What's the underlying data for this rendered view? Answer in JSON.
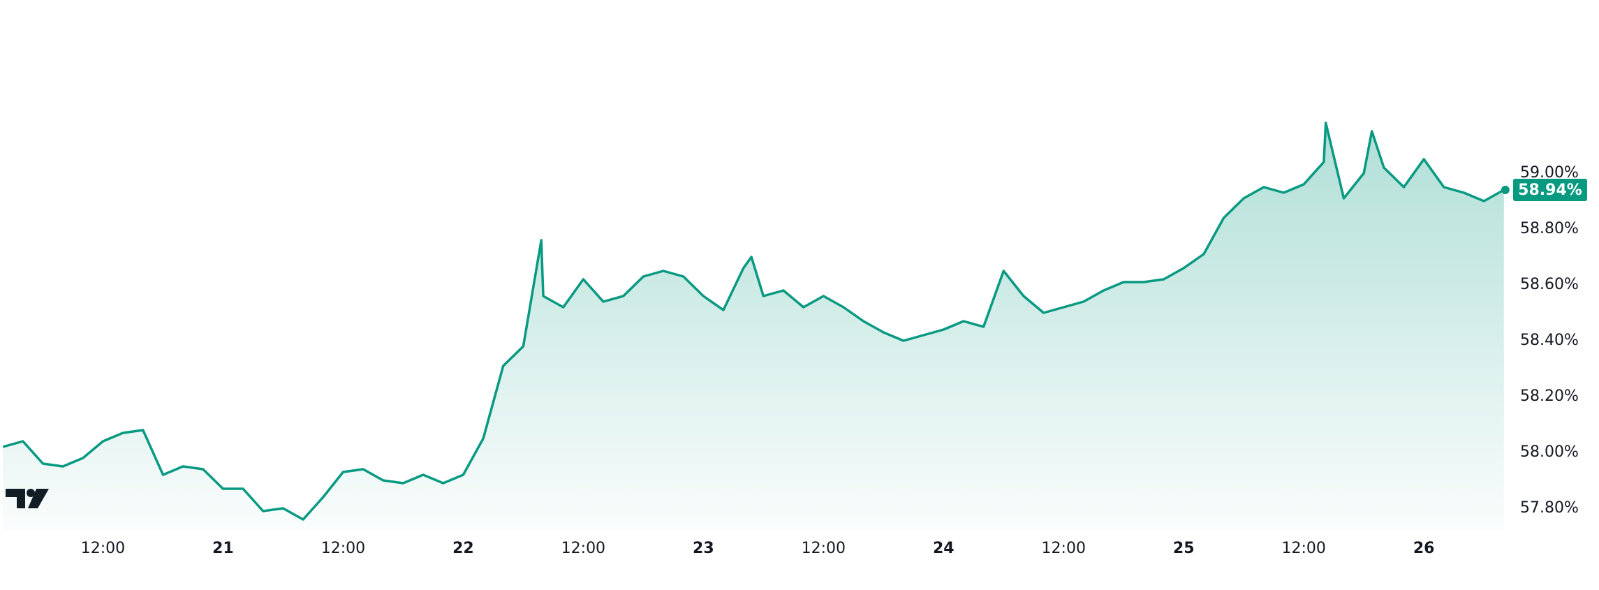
{
  "chart_data": {
    "type": "line",
    "x": [
      2,
      4,
      6,
      8,
      10,
      12,
      14,
      16,
      18,
      20,
      22,
      24,
      26,
      28,
      30,
      32,
      34,
      36,
      38,
      40,
      42,
      44,
      46,
      48,
      50,
      52,
      54,
      55.8,
      56,
      58,
      60,
      62,
      64,
      66,
      68,
      70,
      72,
      74,
      76,
      76.8,
      78,
      80,
      82,
      84,
      86,
      88,
      90,
      92,
      94,
      96,
      98,
      100,
      102,
      104,
      106,
      108,
      110,
      112,
      114,
      116,
      118,
      120,
      122,
      124,
      126,
      128,
      130,
      132,
      134,
      134.2,
      136,
      138,
      138.8,
      140,
      142,
      144,
      146,
      148,
      150,
      152
    ],
    "values": [
      58.02,
      58.04,
      57.96,
      57.95,
      57.98,
      58.04,
      58.07,
      58.08,
      57.92,
      57.95,
      57.94,
      57.87,
      57.87,
      57.79,
      57.8,
      57.76,
      57.84,
      57.93,
      57.94,
      57.9,
      57.89,
      57.92,
      57.89,
      57.92,
      58.05,
      58.31,
      58.38,
      58.76,
      58.56,
      58.52,
      58.62,
      58.54,
      58.56,
      58.63,
      58.65,
      58.63,
      58.56,
      58.51,
      58.66,
      58.7,
      58.56,
      58.58,
      58.52,
      58.56,
      58.52,
      58.47,
      58.43,
      58.4,
      58.42,
      58.44,
      58.47,
      58.45,
      58.65,
      58.56,
      58.5,
      58.52,
      58.54,
      58.58,
      58.61,
      58.61,
      58.62,
      58.66,
      58.71,
      58.84,
      58.91,
      58.95,
      58.93,
      58.96,
      59.04,
      59.18,
      58.91,
      59.0,
      59.15,
      59.02,
      58.95,
      59.05,
      58.95,
      58.93,
      58.9,
      58.94
    ],
    "color": "#089981",
    "current": {
      "value": 58.94,
      "label": "58.94%"
    },
    "xlim": [
      1.71,
      152.5
    ],
    "xticks": [
      {
        "value": 12,
        "label": "12:00"
      },
      {
        "value": 24,
        "label": "21"
      },
      {
        "value": 36,
        "label": "12:00"
      },
      {
        "value": 48,
        "label": "22"
      },
      {
        "value": 60,
        "label": "12:00"
      },
      {
        "value": 72,
        "label": "23"
      },
      {
        "value": 84,
        "label": "12:00"
      },
      {
        "value": 96,
        "label": "24"
      },
      {
        "value": 108,
        "label": "12:00"
      },
      {
        "value": 120,
        "label": "25"
      },
      {
        "value": 132,
        "label": "12:00"
      },
      {
        "value": 144,
        "label": "26"
      }
    ],
    "ylim": [
      57.72,
      59.62
    ],
    "yticks": [
      {
        "value": 57.8,
        "label": "57.80%"
      },
      {
        "value": 58.0,
        "label": "58.00%"
      },
      {
        "value": 58.2,
        "label": "58.20%"
      },
      {
        "value": 58.4,
        "label": "58.40%"
      },
      {
        "value": 58.6,
        "label": "58.60%"
      },
      {
        "value": 58.8,
        "label": "58.80%"
      },
      {
        "value": 59.0,
        "label": "59.00%"
      }
    ]
  }
}
